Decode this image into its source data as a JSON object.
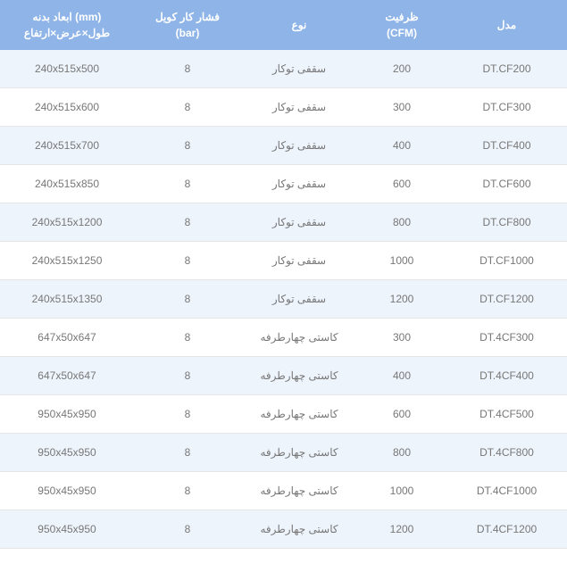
{
  "table": {
    "headers": {
      "dimensions": "ابعاد بدنه (mm)\nطول×عرض×ارتفاع",
      "pressure": "فشار کار کویل\n(bar)",
      "type": "نوع",
      "capacity": "ظرفیت\n(CFM)",
      "model": "مدل"
    },
    "rows": [
      {
        "dimensions": "240x515x500",
        "pressure": "8",
        "type": "سقفی توکار",
        "capacity": "200",
        "model": "DT.CF200"
      },
      {
        "dimensions": "240x515x600",
        "pressure": "8",
        "type": "سقفی توکار",
        "capacity": "300",
        "model": "DT.CF300"
      },
      {
        "dimensions": "240x515x700",
        "pressure": "8",
        "type": "سقفی توکار",
        "capacity": "400",
        "model": "DT.CF400"
      },
      {
        "dimensions": "240x515x850",
        "pressure": "8",
        "type": "سقفی توکار",
        "capacity": "600",
        "model": "DT.CF600"
      },
      {
        "dimensions": "240x515x1200",
        "pressure": "8",
        "type": "سقفی توکار",
        "capacity": "800",
        "model": "DT.CF800"
      },
      {
        "dimensions": "240x515x1250",
        "pressure": "8",
        "type": "سقفی توکار",
        "capacity": "1000",
        "model": "DT.CF1000"
      },
      {
        "dimensions": "240x515x1350",
        "pressure": "8",
        "type": "سقفی توکار",
        "capacity": "1200",
        "model": "DT.CF1200"
      },
      {
        "dimensions": "647x50x647",
        "pressure": "8",
        "type": "کاستی چهارطرفه",
        "capacity": "300",
        "model": "DT.4CF300"
      },
      {
        "dimensions": "647x50x647",
        "pressure": "8",
        "type": "کاستی چهارطرفه",
        "capacity": "400",
        "model": "DT.4CF400"
      },
      {
        "dimensions": "950x45x950",
        "pressure": "8",
        "type": "کاستی چهارطرفه",
        "capacity": "600",
        "model": "DT.4CF500"
      },
      {
        "dimensions": "950x45x950",
        "pressure": "8",
        "type": "کاستی چهارطرفه",
        "capacity": "800",
        "model": "DT.4CF800"
      },
      {
        "dimensions": "950x45x950",
        "pressure": "8",
        "type": "کاستی چهارطرفه",
        "capacity": "1000",
        "model": "DT.4CF1000"
      },
      {
        "dimensions": "950x45x950",
        "pressure": "8",
        "type": "کاستی چهارطرفه",
        "capacity": "1200",
        "model": "DT.4CF1200"
      }
    ],
    "colors": {
      "header_bg": "#8fb5e8",
      "header_text": "#ffffff",
      "row_even_bg": "#eef4fc",
      "row_odd_bg": "#ffffff",
      "cell_text": "#777777",
      "border": "#e5e5e5"
    },
    "font_size_header": 12,
    "font_size_cell": 12
  }
}
